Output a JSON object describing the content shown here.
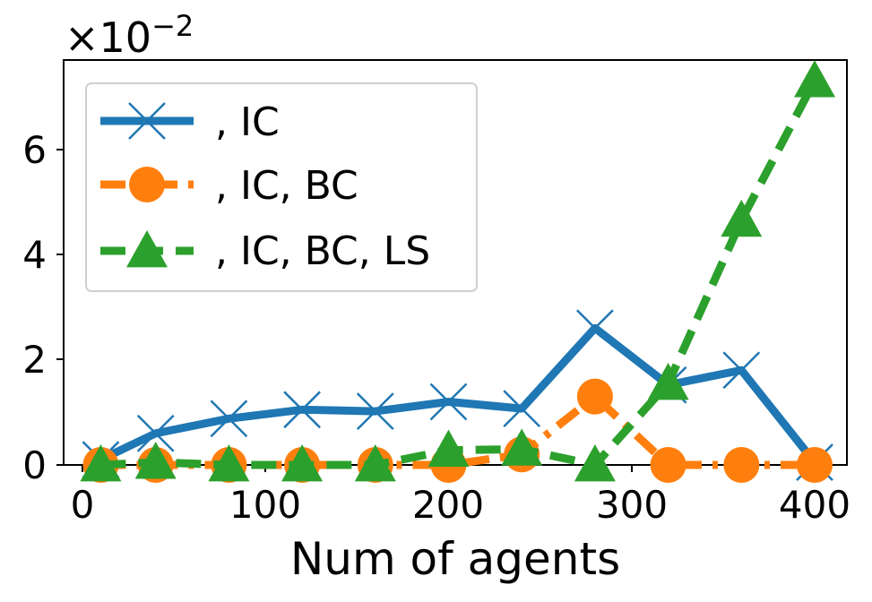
{
  "chart_data": {
    "type": "line",
    "title": "",
    "xlabel": "Num of agents",
    "ylabel": "",
    "offset_text": "×10",
    "offset_exponent": "−2",
    "xlim": [
      -5,
      418
    ],
    "ylim": [
      0,
      7.7
    ],
    "xticks": [
      0,
      100,
      200,
      300,
      400
    ],
    "xtick_labels": [
      "0",
      "100",
      "200",
      "300",
      "400"
    ],
    "yticks": [
      0,
      2,
      4,
      6
    ],
    "ytick_labels": [
      "0",
      "2",
      "4",
      "6"
    ],
    "grid": false,
    "legend_position": "top-left",
    "x": [
      10,
      40,
      80,
      120,
      160,
      200,
      240,
      280,
      320,
      360,
      400
    ],
    "series": [
      {
        "name": ", IC",
        "color": "#1f77b4",
        "marker": "x",
        "linestyle": "solid",
        "values": [
          0.1,
          0.6,
          0.88,
          1.05,
          1.02,
          1.2,
          1.07,
          2.6,
          1.52,
          1.8,
          0.05
        ]
      },
      {
        "name": ", IC, BC",
        "color": "#ff7f0e",
        "marker": "circle",
        "linestyle": "dashdot",
        "values": [
          0.0,
          0.0,
          0.0,
          0.0,
          0.0,
          0.0,
          0.2,
          1.3,
          0.0,
          0.0,
          0.0
        ]
      },
      {
        "name": ", IC, BC, LS",
        "color": "#2ca02c",
        "marker": "triangle",
        "linestyle": "dashed",
        "values": [
          0.0,
          0.05,
          0.0,
          0.0,
          0.0,
          0.28,
          0.3,
          0.0,
          1.55,
          4.65,
          7.3
        ]
      }
    ]
  }
}
